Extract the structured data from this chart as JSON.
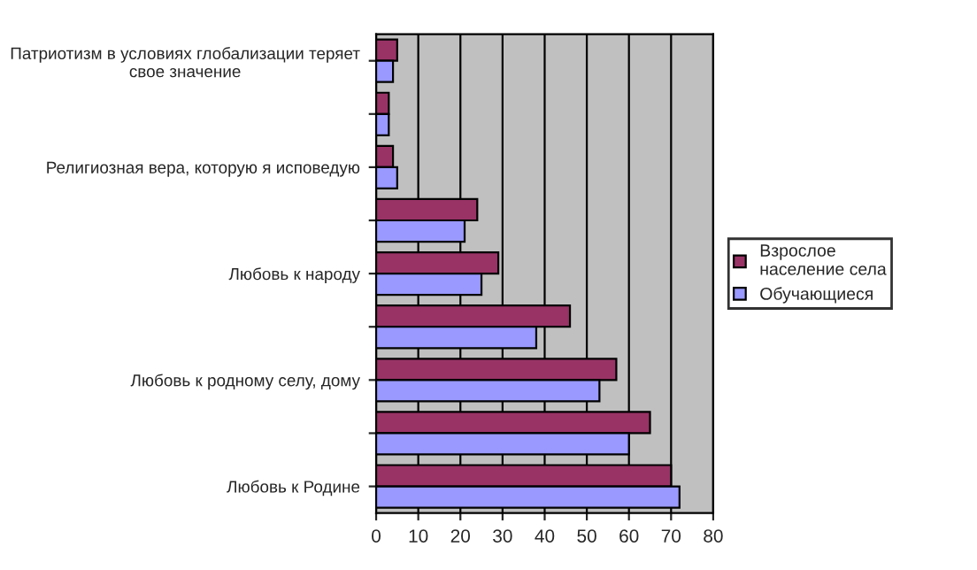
{
  "chart_data": {
    "type": "bar",
    "orientation": "horizontal",
    "categories": [
      "Патриотизм в условиях глобализации теряет\nсвое значение",
      null,
      "Религиозная вера, которую я исповедую",
      null,
      "Любовь к народу",
      null,
      "Любовь к родному селу, дому",
      null,
      "Любовь к Родине"
    ],
    "series": [
      {
        "name": "Взрослое\nнаселение села",
        "color": "#993366",
        "values": [
          5,
          3,
          4,
          24,
          29,
          46,
          57,
          65,
          70
        ]
      },
      {
        "name": "Обучающиеся",
        "color": "#9999ff",
        "values": [
          4,
          3,
          5,
          21,
          25,
          38,
          53,
          60,
          72
        ]
      }
    ],
    "xlim": [
      0,
      80
    ],
    "xticks": [
      0,
      10,
      20,
      30,
      40,
      50,
      60,
      70,
      80
    ],
    "grid": "x",
    "legend": "right"
  }
}
